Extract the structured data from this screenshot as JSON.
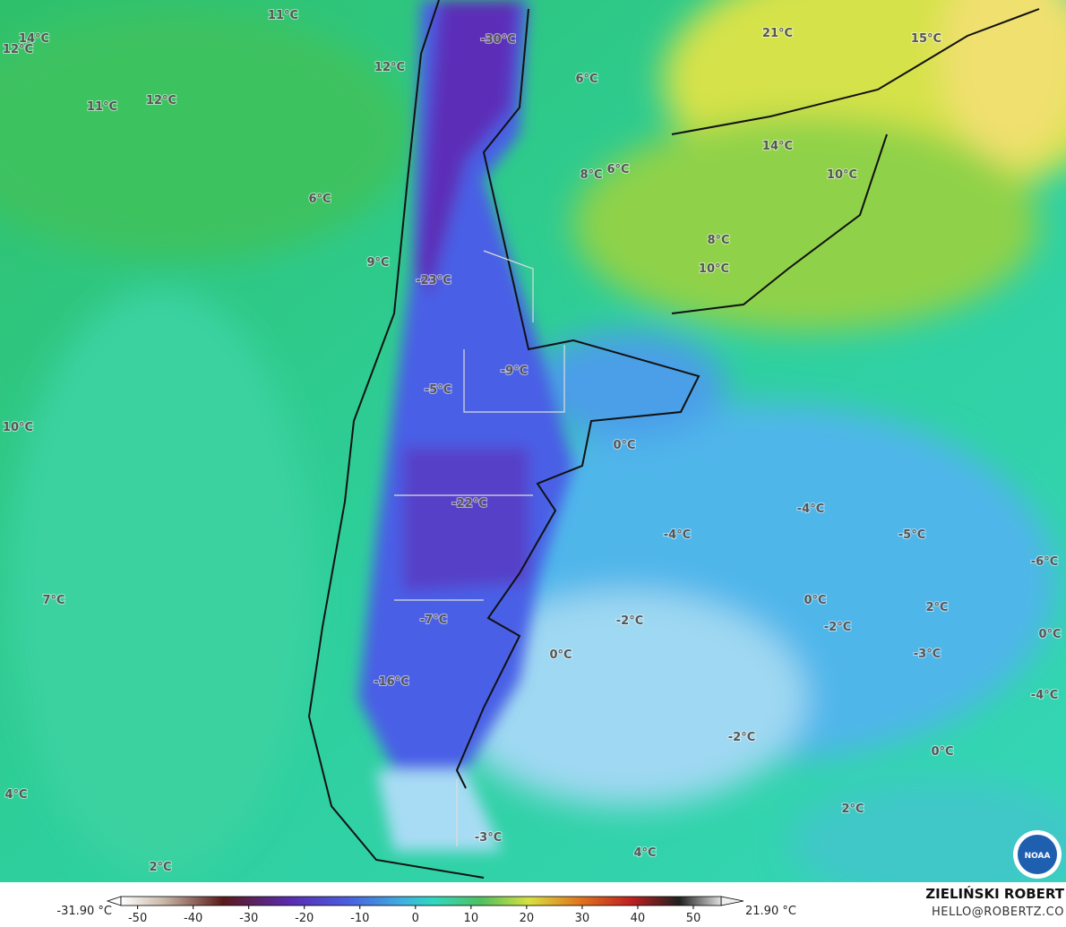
{
  "map": {
    "labels": [
      "11°C",
      "14°C",
      "12°C",
      "-30°C",
      "21°C",
      "15°C",
      "12°C",
      "6°C",
      "11°C",
      "12°C",
      "14°C",
      "8°C",
      "6°C",
      "10°C",
      "6°C",
      "8°C",
      "9°C",
      "10°C",
      "-23°C",
      "-9°C",
      "-5°C",
      "10°C",
      "0°C",
      "-22°C",
      "-4°C",
      "-4°C",
      "-5°C",
      "-6°C",
      "7°C",
      "0°C",
      "2°C",
      "-7°C",
      "-2°C",
      "-2°C",
      "0°C",
      "0°C",
      "-3°C",
      "-16°C",
      "-4°C",
      "-2°C",
      "0°C",
      "4°C",
      "2°C",
      "-3°C",
      "4°C",
      "2°C"
    ],
    "logo": "NOAA"
  },
  "colorbar": {
    "min_label": "-31.90 °C",
    "max_label": "21.90 °C",
    "xlim": [
      -53,
      55
    ],
    "ticks": [
      -50,
      -40,
      -30,
      -20,
      -10,
      0,
      10,
      20,
      30,
      40,
      50
    ]
  },
  "brand": {
    "name": "ZIELIŃSKI ROBERT",
    "email": "HELLO@ROBERTZ.CO"
  }
}
